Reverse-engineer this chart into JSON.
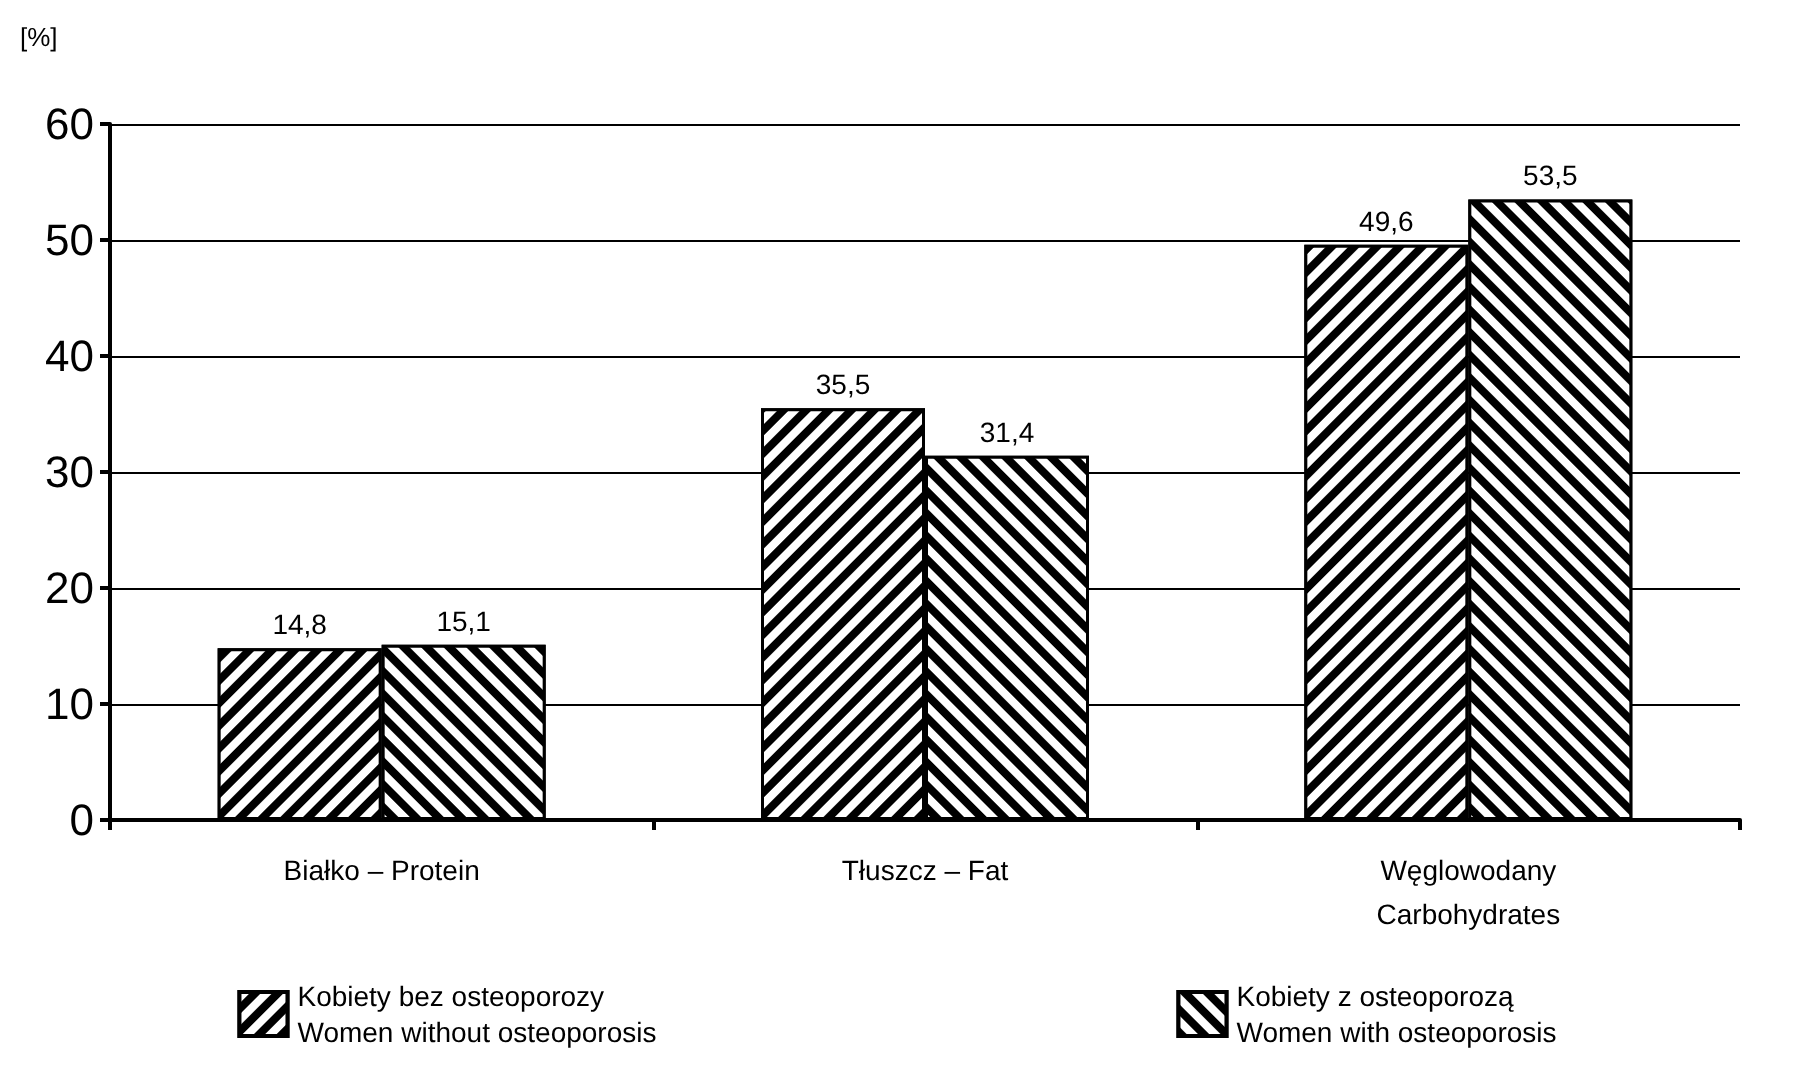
{
  "chart_data": {
    "type": "bar",
    "ylabel": "[%]",
    "categories": [
      "Białko – Protein",
      "Tłuszcz – Fat",
      "Węglowodany\nCarbohydrates"
    ],
    "series": [
      {
        "name": "Kobiety bez osteoporozy\nWomen without osteoporosis",
        "color": "#000000",
        "values": [
          14.8,
          35.5,
          49.6
        ],
        "value_labels": [
          "14,8",
          "35,5",
          "49,6"
        ]
      },
      {
        "name": "Kobiety z osteoporozą\nWomen with osteoporosis",
        "color": "#000000",
        "values": [
          15.1,
          31.4,
          53.5
        ],
        "value_labels": [
          "15,1",
          "31,4",
          "53,5"
        ]
      }
    ],
    "ylim": [
      0,
      60
    ],
    "yticks": [
      0,
      10,
      20,
      30,
      40,
      50,
      60
    ],
    "grid": "y",
    "legend": "bottom"
  }
}
